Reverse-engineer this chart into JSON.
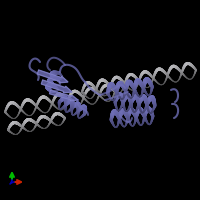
{
  "background_color": "#000000",
  "fig_width": 2.0,
  "fig_height": 2.0,
  "dpi": 100,
  "protein_color": "#7070b8",
  "protein_color2": "#8888cc",
  "dna_color": "#666666",
  "dna_color2": "#555555",
  "axis_x_color": "#cc2200",
  "axis_y_color": "#00bb00",
  "axis_z_color": "#0000bb",
  "seed": 42
}
